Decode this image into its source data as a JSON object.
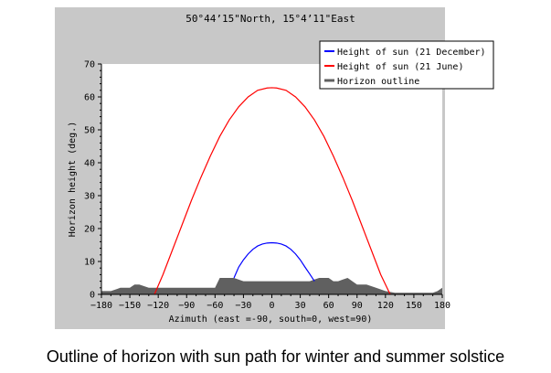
{
  "chart_data": {
    "type": "line",
    "title": "50°44’15\"North, 15°4’11\"East",
    "xlabel": "Azimuth (east =-90, south=0, west=90)",
    "ylabel": "Horizon height (deg.)",
    "xlim": [
      -180,
      180
    ],
    "ylim": [
      0,
      70
    ],
    "xticks": [
      -180,
      -150,
      -120,
      -90,
      -60,
      -30,
      0,
      30,
      60,
      90,
      120,
      150,
      180
    ],
    "yticks": [
      0,
      10,
      20,
      30,
      40,
      50,
      60,
      70
    ],
    "grid": false,
    "legend_position": "top-right",
    "series": [
      {
        "name": "Height of sun (21 December)",
        "color": "#0000ff",
        "x": [
          -40,
          -35,
          -30,
          -25,
          -20,
          -15,
          -10,
          -5,
          0,
          5,
          10,
          15,
          20,
          25,
          30,
          35,
          40,
          45
        ],
        "y": [
          5,
          8.3,
          10.5,
          12.3,
          13.7,
          14.7,
          15.3,
          15.6,
          15.7,
          15.6,
          15.3,
          14.7,
          13.7,
          12.3,
          10.5,
          8.3,
          6.2,
          4
        ]
      },
      {
        "name": "Height of sun (21 June)",
        "color": "#ff0000",
        "x": [
          -124,
          -115,
          -105,
          -95,
          -85,
          -75,
          -65,
          -55,
          -45,
          -35,
          -25,
          -15,
          -5,
          0,
          5,
          15,
          25,
          35,
          45,
          55,
          65,
          75,
          85,
          95,
          105,
          115,
          125
        ],
        "y": [
          0,
          6,
          13.5,
          21,
          28.5,
          35.5,
          42,
          48,
          53,
          57,
          60,
          62,
          62.7,
          62.8,
          62.7,
          62,
          60,
          57,
          53,
          48,
          42,
          35.5,
          28.5,
          21,
          13.5,
          6,
          0
        ]
      },
      {
        "name": "Horizon outline",
        "color": "#606060",
        "type": "area",
        "x": [
          -180,
          -170,
          -160,
          -150,
          -145,
          -140,
          -135,
          -130,
          -120,
          -110,
          -100,
          -90,
          -80,
          -70,
          -60,
          -55,
          -50,
          -45,
          -40,
          -30,
          -20,
          -10,
          0,
          10,
          20,
          30,
          40,
          45,
          50,
          55,
          60,
          65,
          70,
          75,
          80,
          85,
          90,
          95,
          100,
          110,
          120,
          130,
          140,
          150,
          160,
          170,
          175,
          180
        ],
        "y": [
          1,
          1,
          2,
          2,
          3,
          3,
          2.5,
          2,
          2,
          2,
          2,
          2,
          2,
          2,
          2,
          5,
          5,
          5,
          5,
          4,
          4,
          4,
          4,
          4,
          4,
          4,
          4,
          4.5,
          5,
          5,
          5,
          4,
          4,
          4.5,
          5,
          4,
          3,
          3,
          3,
          2,
          1,
          0.5,
          0.5,
          0.5,
          0.5,
          0.5,
          1,
          2
        ]
      }
    ]
  },
  "caption": "Outline of horizon with sun path for winter and summer solstice"
}
